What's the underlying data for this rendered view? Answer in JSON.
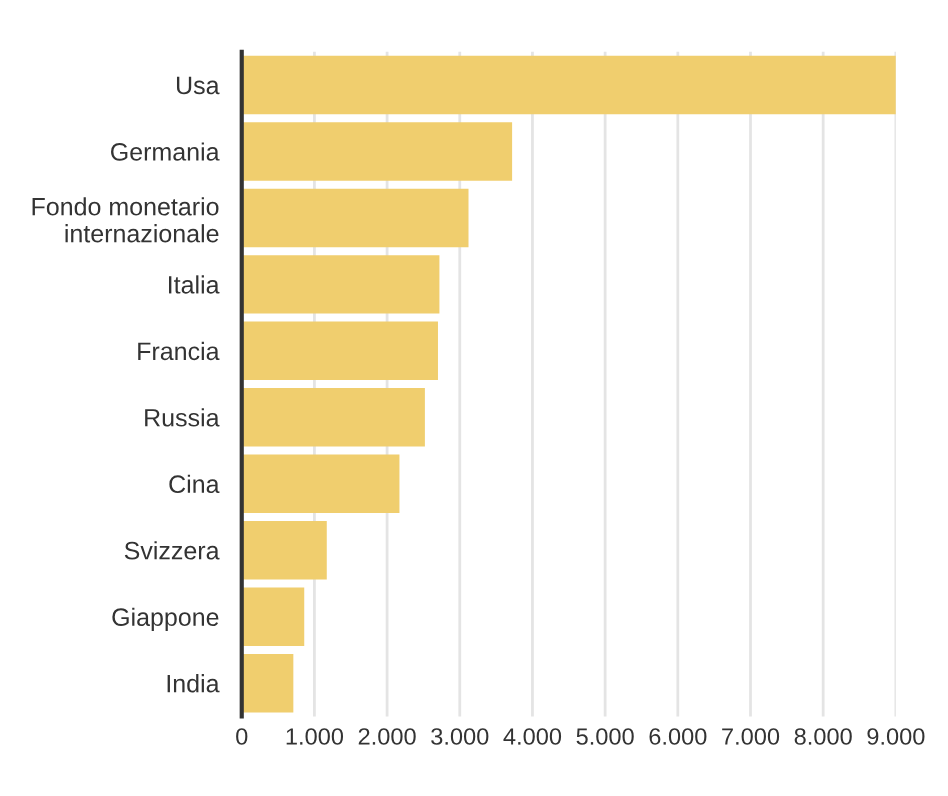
{
  "chart_data": {
    "type": "bar",
    "orientation": "horizontal",
    "categories": [
      "Usa",
      "Germania",
      "Fondo monetario\ninternazionale",
      "Italia",
      "Francia",
      "Russia",
      "Cina",
      "Svizzera",
      "Giappone",
      "India"
    ],
    "values": [
      9000,
      3720,
      3120,
      2720,
      2700,
      2520,
      2170,
      1170,
      860,
      710
    ],
    "color": "#f0ce6e",
    "xlim": [
      0,
      9000
    ],
    "xticks": [
      0,
      {
        "value": 1000,
        "label": "1.000"
      },
      {
        "value": 2000,
        "label": "2.000"
      },
      {
        "value": 3000,
        "label": "3.000"
      },
      {
        "value": 4000,
        "label": "4.000"
      },
      {
        "value": 5000,
        "label": "5.000"
      },
      {
        "value": 6000,
        "label": "6.000"
      },
      {
        "value": 7000,
        "label": "7.000"
      },
      {
        "value": 8000,
        "label": "8.000"
      },
      {
        "value": 9000,
        "label": "9.000"
      }
    ],
    "grid": "x",
    "legend": false
  }
}
